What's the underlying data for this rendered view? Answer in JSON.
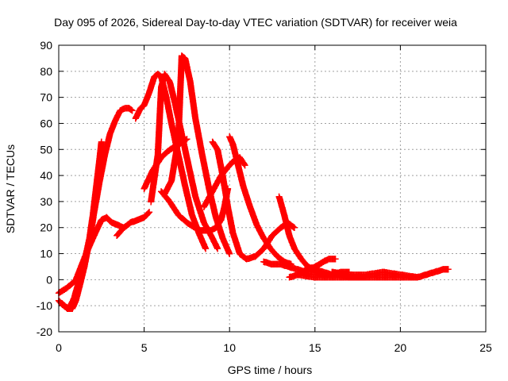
{
  "chart_data": {
    "type": "scatter",
    "title": "Day 095 of 2026, Sidereal Day-to-day VTEC variation (SDTVAR) for receiver weia",
    "xlabel": "GPS time / hours",
    "ylabel": "SDTVAR / TECUs",
    "xlim": [
      0,
      25
    ],
    "ylim": [
      -20,
      90
    ],
    "xticks": [
      0,
      5,
      10,
      15,
      20,
      25
    ],
    "yticks": [
      -20,
      -10,
      0,
      10,
      20,
      30,
      40,
      50,
      60,
      70,
      80,
      90
    ],
    "xtick_labels": [
      "0",
      "5",
      "10",
      "15",
      "20",
      "25"
    ],
    "ytick_labels": [
      "-20",
      "-10",
      "0",
      "10",
      "20",
      "30",
      "40",
      "50",
      "60",
      "70",
      "80",
      "90"
    ],
    "grid": true,
    "marker": "+",
    "color": "#ff0000",
    "series": [
      {
        "name": "track-1",
        "x": [
          0.0,
          0.3,
          0.6,
          0.9,
          1.2,
          1.4,
          1.6,
          1.8,
          2.0,
          2.2,
          2.4,
          2.5
        ],
        "y": [
          -8,
          -10,
          -11,
          -7,
          0,
          5,
          10,
          16,
          25,
          36,
          47,
          53
        ]
      },
      {
        "name": "track-2",
        "x": [
          0.2,
          0.5,
          0.8,
          1.0,
          1.2,
          1.5,
          1.8,
          2.1,
          2.4,
          2.7,
          3.0,
          3.3,
          3.6,
          3.9,
          4.1,
          4.3
        ],
        "y": [
          -9,
          -11,
          -11,
          -8,
          -3,
          5,
          15,
          27,
          38,
          48,
          56,
          61,
          65,
          66,
          66,
          65
        ]
      },
      {
        "name": "track-3",
        "x": [
          0.0,
          0.5,
          1.0,
          1.3,
          1.6,
          2.0,
          2.5,
          2.8,
          3.1,
          3.5,
          3.8
        ],
        "y": [
          -5,
          -3,
          0,
          5,
          10,
          16,
          23,
          24,
          22,
          21,
          20
        ]
      },
      {
        "name": "track-4",
        "x": [
          3.4,
          3.8,
          4.2,
          4.6,
          5.0,
          5.3
        ],
        "y": [
          17,
          20,
          22,
          23,
          24,
          26
        ]
      },
      {
        "name": "track-5",
        "x": [
          4.5,
          4.8,
          5.0,
          5.3,
          5.6,
          5.8,
          6.0,
          6.3,
          6.6,
          7.0,
          7.4,
          7.8,
          8.2,
          8.6
        ],
        "y": [
          62,
          66,
          67,
          72,
          78,
          79,
          78,
          70,
          60,
          48,
          36,
          25,
          18,
          12
        ]
      },
      {
        "name": "track-6",
        "x": [
          5.4,
          5.8,
          6.0,
          6.2,
          6.5,
          6.8,
          7.2,
          7.6,
          8.0,
          8.5,
          9.0,
          9.3
        ],
        "y": [
          30,
          48,
          74,
          79,
          76,
          68,
          56,
          44,
          32,
          22,
          16,
          12
        ]
      },
      {
        "name": "track-7",
        "x": [
          6.2,
          6.6,
          7.0,
          7.2,
          7.4,
          7.7,
          8.0,
          8.4,
          8.8,
          9.2,
          9.6,
          10.0
        ],
        "y": [
          33,
          38,
          54,
          86,
          85,
          76,
          62,
          48,
          35,
          24,
          16,
          10
        ]
      },
      {
        "name": "track-8",
        "x": [
          5.0,
          5.5,
          6.0,
          6.5,
          7.0,
          7.5
        ],
        "y": [
          35,
          42,
          47,
          50,
          52,
          54
        ]
      },
      {
        "name": "track-9",
        "x": [
          6.0,
          6.5,
          7.0,
          7.5,
          8.0,
          8.3,
          8.6,
          8.9,
          9.2,
          9.5,
          9.7,
          9.9
        ],
        "y": [
          34,
          30,
          25,
          22,
          20,
          19,
          19,
          19,
          20,
          23,
          28,
          35
        ]
      },
      {
        "name": "track-10",
        "x": [
          8.5,
          9.0,
          9.5,
          10.0,
          10.3,
          10.6,
          10.9
        ],
        "y": [
          28,
          34,
          40,
          44,
          46,
          47,
          44
        ]
      },
      {
        "name": "track-11",
        "x": [
          9.0,
          9.3,
          9.6,
          9.9,
          10.2,
          10.6,
          11.0,
          11.5,
          12.0,
          12.5,
          13.0,
          13.4,
          13.8
        ],
        "y": [
          53,
          50,
          40,
          28,
          18,
          10,
          8,
          9,
          12,
          17,
          20,
          22,
          20
        ]
      },
      {
        "name": "track-12",
        "x": [
          10.0,
          10.2,
          10.5,
          10.8,
          11.2,
          11.6,
          12.0,
          12.4,
          12.8,
          13.2,
          13.6
        ],
        "y": [
          55,
          52,
          44,
          36,
          28,
          21,
          16,
          12,
          9,
          7,
          6
        ]
      },
      {
        "name": "track-13",
        "x": [
          12.0,
          12.5,
          13.0,
          13.5,
          14.0,
          14.5,
          15.0,
          15.5,
          16.0,
          16.5,
          17.0
        ],
        "y": [
          7,
          6,
          6,
          5,
          4,
          3,
          3,
          2,
          2,
          3,
          3
        ]
      },
      {
        "name": "track-14",
        "x": [
          12.9,
          13.2,
          13.5,
          13.8,
          14.2,
          14.6,
          15.0,
          15.5,
          16.0,
          16.5,
          17.0,
          17.5,
          18.0
        ],
        "y": [
          32,
          25,
          17,
          12,
          8,
          5,
          4,
          3,
          2,
          2,
          1,
          1,
          1
        ]
      },
      {
        "name": "track-15",
        "x": [
          13.5,
          14.0,
          14.5,
          15.0,
          15.5,
          15.8,
          16.2
        ],
        "y": [
          1,
          2,
          4,
          5,
          7,
          8,
          8
        ]
      },
      {
        "name": "track-16",
        "x": [
          14.0,
          15.0,
          16.0,
          17.0,
          18.0,
          19.0,
          20.0,
          21.0,
          21.5,
          22.0,
          22.5,
          22.8
        ],
        "y": [
          2,
          1,
          1,
          1,
          1,
          1,
          1,
          1,
          2,
          3,
          4,
          4
        ]
      },
      {
        "name": "track-17",
        "x": [
          16.0,
          17.0,
          18.0,
          19.0,
          20.0,
          21.0
        ],
        "y": [
          3,
          2,
          2,
          3,
          2,
          1
        ]
      }
    ]
  }
}
